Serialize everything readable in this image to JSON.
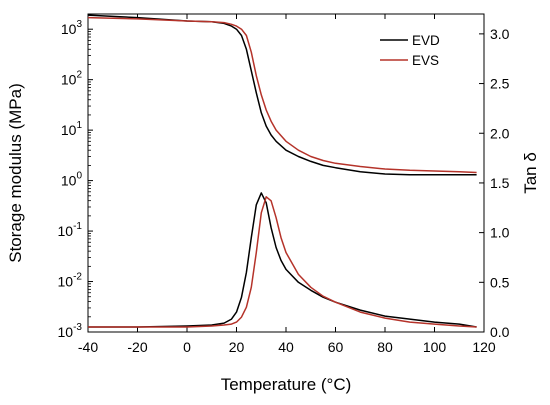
{
  "chart_data": {
    "type": "line",
    "title": "",
    "xlabel": "Temperature (°C)",
    "ylabel_left": "Storage modulus (MPa)",
    "ylabel_right": "Tan δ",
    "xlim": [
      -40,
      120
    ],
    "ylim_left": [
      0.001,
      2000
    ],
    "ylim_right": [
      0,
      3.2
    ],
    "left_scale": "log",
    "grid": false,
    "legend_position": "top-right",
    "x_ticks": [
      -40,
      -20,
      0,
      20,
      40,
      60,
      80,
      100,
      120
    ],
    "x_tick_labels": [
      "-40",
      "-20",
      "0",
      "20",
      "40",
      "60",
      "80",
      "100",
      "120"
    ],
    "left_ticks": [
      0.001,
      0.01,
      0.1,
      1,
      10,
      100,
      1000
    ],
    "left_tick_labels": [
      {
        "base": "10",
        "exp": "-3"
      },
      {
        "base": "10",
        "exp": "-2"
      },
      {
        "base": "10",
        "exp": "-1"
      },
      {
        "base": "10",
        "exp": "0"
      },
      {
        "base": "10",
        "exp": "1"
      },
      {
        "base": "10",
        "exp": "2"
      },
      {
        "base": "10",
        "exp": "3"
      }
    ],
    "right_ticks": [
      0.0,
      0.5,
      1.0,
      1.5,
      2.0,
      2.5,
      3.0
    ],
    "right_tick_labels": [
      "0.0",
      "0.5",
      "1.0",
      "1.5",
      "2.0",
      "2.5",
      "3.0"
    ],
    "series": [
      {
        "name": "EVD",
        "color": "#000000",
        "axis": "left",
        "kind": "storage_modulus",
        "x": [
          -40,
          -20,
          0,
          10,
          15,
          18,
          20,
          22,
          24,
          26,
          28,
          30,
          32,
          34,
          36,
          40,
          45,
          50,
          55,
          60,
          70,
          80,
          90,
          100,
          110,
          117
        ],
        "y": [
          1900,
          1700,
          1450,
          1400,
          1300,
          1150,
          1000,
          750,
          400,
          150,
          55,
          22,
          12,
          8,
          6,
          4,
          3,
          2.4,
          2,
          1.8,
          1.5,
          1.35,
          1.3,
          1.3,
          1.3,
          1.3
        ]
      },
      {
        "name": "EVS",
        "color": "#b5332a",
        "axis": "left",
        "kind": "storage_modulus",
        "x": [
          -40,
          -20,
          0,
          10,
          15,
          18,
          20,
          22,
          24,
          26,
          28,
          30,
          32,
          34,
          36,
          40,
          45,
          50,
          55,
          60,
          70,
          80,
          90,
          100,
          110,
          117
        ],
        "y": [
          1700,
          1600,
          1450,
          1400,
          1350,
          1250,
          1150,
          1000,
          750,
          350,
          120,
          50,
          25,
          15,
          10,
          6,
          4,
          3,
          2.5,
          2.2,
          1.9,
          1.7,
          1.6,
          1.55,
          1.5,
          1.45
        ]
      },
      {
        "name": "EVD",
        "color": "#000000",
        "axis": "right",
        "kind": "tan_delta",
        "x": [
          -40,
          -20,
          0,
          10,
          15,
          18,
          20,
          22,
          24,
          26,
          28,
          30,
          32,
          34,
          36,
          38,
          40,
          45,
          50,
          55,
          60,
          70,
          80,
          90,
          100,
          110,
          117
        ],
        "y": [
          0.05,
          0.05,
          0.06,
          0.07,
          0.09,
          0.13,
          0.2,
          0.35,
          0.6,
          0.95,
          1.28,
          1.4,
          1.3,
          1.05,
          0.85,
          0.72,
          0.63,
          0.5,
          0.42,
          0.35,
          0.3,
          0.22,
          0.16,
          0.13,
          0.1,
          0.08,
          0.05
        ]
      },
      {
        "name": "EVS",
        "color": "#b5332a",
        "axis": "right",
        "kind": "tan_delta",
        "x": [
          -40,
          -20,
          0,
          10,
          15,
          18,
          20,
          22,
          24,
          26,
          28,
          30,
          32,
          34,
          36,
          38,
          40,
          45,
          50,
          55,
          60,
          70,
          80,
          90,
          100,
          110,
          117
        ],
        "y": [
          0.05,
          0.05,
          0.05,
          0.06,
          0.07,
          0.08,
          0.1,
          0.15,
          0.25,
          0.45,
          0.8,
          1.2,
          1.36,
          1.32,
          1.15,
          0.95,
          0.8,
          0.58,
          0.45,
          0.36,
          0.3,
          0.2,
          0.14,
          0.1,
          0.08,
          0.06,
          0.05
        ]
      }
    ]
  }
}
